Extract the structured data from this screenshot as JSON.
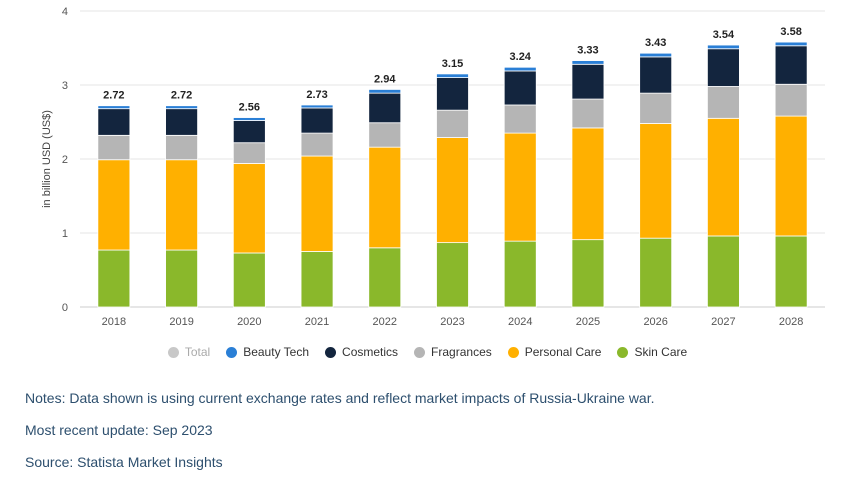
{
  "chart_data": {
    "type": "bar",
    "stacked": true,
    "categories": [
      "2018",
      "2019",
      "2020",
      "2021",
      "2022",
      "2023",
      "2024",
      "2025",
      "2026",
      "2027",
      "2028"
    ],
    "totals": [
      2.72,
      2.72,
      2.56,
      2.73,
      2.94,
      3.15,
      3.24,
      3.33,
      3.43,
      3.54,
      3.58
    ],
    "series": [
      {
        "name": "Skin Care",
        "color": "#8ab82b",
        "values": [
          0.77,
          0.77,
          0.73,
          0.75,
          0.8,
          0.87,
          0.89,
          0.91,
          0.93,
          0.96,
          0.96
        ]
      },
      {
        "name": "Personal Care",
        "color": "#ffb000",
        "values": [
          1.22,
          1.22,
          1.21,
          1.29,
          1.36,
          1.42,
          1.46,
          1.51,
          1.55,
          1.59,
          1.62
        ]
      },
      {
        "name": "Fragrances",
        "color": "#b5b5b5",
        "values": [
          0.33,
          0.33,
          0.28,
          0.31,
          0.33,
          0.37,
          0.38,
          0.39,
          0.41,
          0.43,
          0.43
        ]
      },
      {
        "name": "Cosmetics",
        "color": "#13253e",
        "values": [
          0.36,
          0.36,
          0.3,
          0.34,
          0.4,
          0.44,
          0.46,
          0.47,
          0.49,
          0.51,
          0.52
        ]
      },
      {
        "name": "Beauty Tech",
        "color": "#2a7fd6",
        "values": [
          0.04,
          0.04,
          0.04,
          0.04,
          0.05,
          0.05,
          0.05,
          0.05,
          0.05,
          0.05,
          0.05
        ]
      }
    ],
    "ylabel": "in billion USD (US$)",
    "ylim": [
      0,
      4
    ],
    "yticks": [
      0,
      1,
      2,
      3,
      4
    ],
    "grid": true,
    "legend_position": "bottom"
  },
  "legend": [
    {
      "label": "Total",
      "color": "#c8c8c8",
      "active": false
    },
    {
      "label": "Beauty Tech",
      "color": "#2a7fd6",
      "active": true
    },
    {
      "label": "Cosmetics",
      "color": "#13253e",
      "active": true
    },
    {
      "label": "Fragrances",
      "color": "#b5b5b5",
      "active": true
    },
    {
      "label": "Personal Care",
      "color": "#ffb000",
      "active": true
    },
    {
      "label": "Skin Care",
      "color": "#8ab82b",
      "active": true
    }
  ],
  "notes": {
    "notes_text": "Notes: Data shown is using current exchange rates and reflect market impacts of Russia-Ukraine war.",
    "update_text": "Most recent update: Sep 2023",
    "source_text": "Source: Statista Market Insights"
  }
}
